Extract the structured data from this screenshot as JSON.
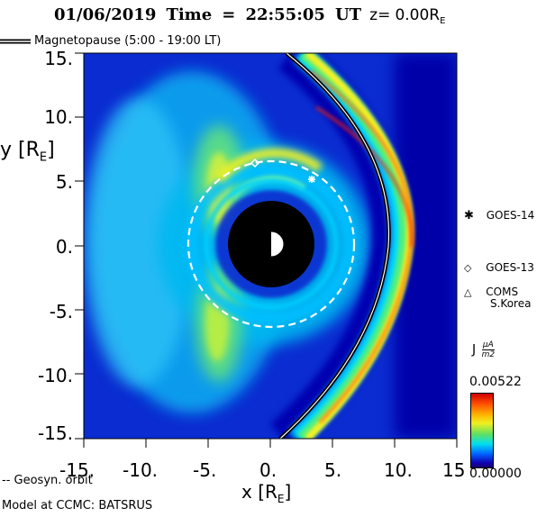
{
  "title": {
    "date": "01/06/2019",
    "time_label": "Time",
    "equals": "=",
    "time_value": "22:55:05",
    "time_unit": "UT",
    "z_prefix": "z=",
    "z_value": "0.00R",
    "z_subscript": "E"
  },
  "legend_top": {
    "label": "Magnetopause (5:00 - 19:00 LT)"
  },
  "axes": {
    "y_label_main": "y [R",
    "y_label_sub": "E",
    "y_label_end": "]",
    "x_label_main": "x [R",
    "x_label_sub": "E",
    "x_label_end": "]",
    "y_ticks": [
      "15.",
      "10.",
      "5.",
      "0.",
      "-5.",
      "-10.",
      "-15."
    ],
    "x_ticks": [
      "-15.",
      "-10.",
      "-5.",
      "0.",
      "5.",
      "10.",
      "15"
    ]
  },
  "satellites": [
    {
      "symbol": "✱",
      "label": "GOES-14"
    },
    {
      "symbol": "◇",
      "label": "GOES-13"
    },
    {
      "symbol": "△",
      "label": "COMS",
      "label2": "S.Korea"
    }
  ],
  "colorbar": {
    "label": "J",
    "unit_num": "μA",
    "unit_den": "m2",
    "max": "0.00522",
    "min": "0.00000"
  },
  "footer": {
    "geosyn": "-- Geosyn. orbit",
    "model": "Model at CCMC: BATSRUS"
  },
  "colors": {
    "background": "#0a24c8",
    "dark_blue": "#0000a0",
    "cyan": "#00c8ff",
    "green": "#40e080",
    "yellow": "#f0f020",
    "red": "#ff3000"
  }
}
